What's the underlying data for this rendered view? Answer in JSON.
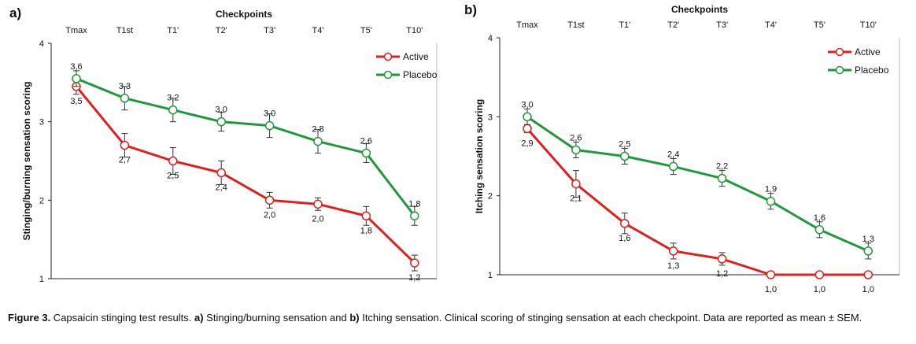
{
  "caption": {
    "figure_label": "Figure 3.",
    "text_1": " Capsaicin stinging test results. ",
    "a_label": "a)",
    "text_2": " Stinging/burning sensation and ",
    "b_label": "b)",
    "text_3": " Itching sensation. Clinical scoring of stinging sensation at each checkpoint. Data are reported as mean ± SEM."
  },
  "colors": {
    "active": "#e0201c",
    "placebo": "#1f9a3a"
  },
  "chart_data": [
    {
      "panel": "a)",
      "type": "line",
      "top_axis_title": "Checkpoints",
      "categories": [
        "Tmax",
        "T1st",
        "T1'",
        "T2'",
        "T3'",
        "T4'",
        "T5'",
        "T10'"
      ],
      "ylabel": "Stinging/burning sensation scoring",
      "ylim": [
        1,
        4
      ],
      "yticks": [
        "1",
        "2",
        "3",
        "4"
      ],
      "legend_position": "top-right",
      "series": [
        {
          "name": "Active",
          "values": [
            3.45,
            2.7,
            2.5,
            2.35,
            2.0,
            1.95,
            1.8,
            1.2
          ],
          "errors": [
            0.1,
            0.15,
            0.17,
            0.15,
            0.1,
            0.08,
            0.12,
            0.1
          ],
          "labels": [
            "3,5",
            "2,7",
            "2,5",
            "2,4",
            "2,0",
            "2,0",
            "1,8",
            "1,2"
          ]
        },
        {
          "name": "Placebo",
          "values": [
            3.55,
            3.3,
            3.15,
            3.0,
            2.95,
            2.75,
            2.6,
            1.8
          ],
          "errors": [
            0.1,
            0.15,
            0.15,
            0.12,
            0.15,
            0.15,
            0.12,
            0.12
          ],
          "labels": [
            "3,6",
            "3,3",
            "3,2",
            "3,0",
            "3,0",
            "2,8",
            "2,6",
            "1,8"
          ]
        }
      ]
    },
    {
      "panel": "b)",
      "type": "line",
      "top_axis_title": "Checkpoints",
      "categories": [
        "Tmax",
        "T1st",
        "T1'",
        "T2'",
        "T3'",
        "T4'",
        "T5'",
        "T10'"
      ],
      "ylabel": "Itching sensation scoring",
      "ylim": [
        1,
        4
      ],
      "yticks": [
        "1",
        "2",
        "3",
        "4"
      ],
      "legend_position": "top-right",
      "series": [
        {
          "name": "Active",
          "values": [
            2.85,
            2.15,
            1.65,
            1.3,
            1.2,
            1.0,
            1.0,
            1.0
          ],
          "errors": [
            0.05,
            0.17,
            0.13,
            0.1,
            0.08,
            0.0,
            0.0,
            0.0
          ],
          "labels": [
            "2,9",
            "2,1",
            "1,6",
            "1,3",
            "1,2",
            "1,0",
            "1,0",
            "1,0"
          ]
        },
        {
          "name": "Placebo",
          "values": [
            3.0,
            2.58,
            2.5,
            2.37,
            2.22,
            1.93,
            1.57,
            1.3
          ],
          "errors": [
            0.1,
            0.1,
            0.1,
            0.1,
            0.1,
            0.1,
            0.1,
            0.1
          ],
          "labels": [
            "3,0",
            "2,6",
            "2,5",
            "2,4",
            "2,2",
            "1,9",
            "1,6",
            "1,3"
          ]
        }
      ]
    }
  ]
}
